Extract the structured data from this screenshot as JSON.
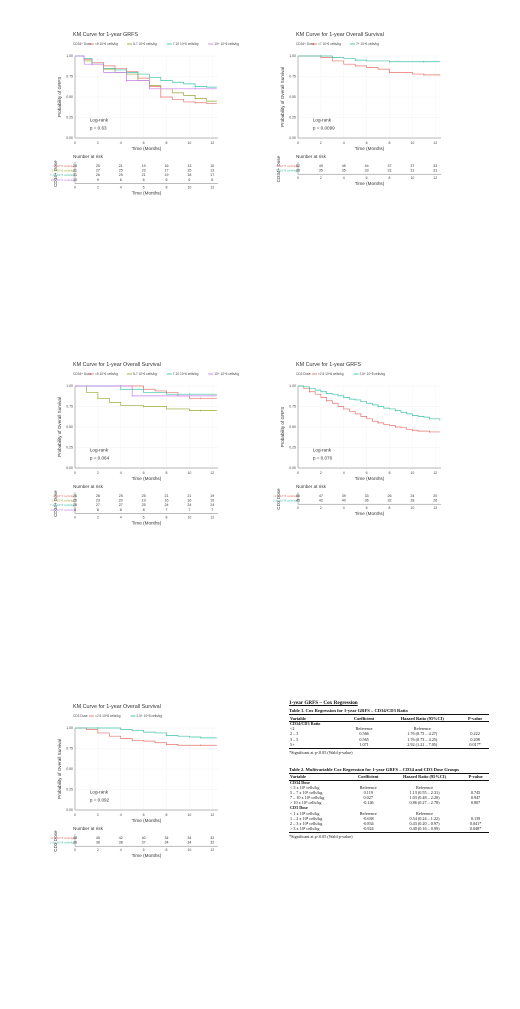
{
  "panels": [
    {
      "id": "p1",
      "title": "KM Curve for 1-year GRFS",
      "legend_title": "CD34+ Dose",
      "legend": [
        "<5 10^6 cells/kg",
        "5-7 10^6 cells/kg",
        "7-10 10^6 cells/kg",
        "10+ 10^6 cells/kg"
      ],
      "ylabel": "Probability of GRFS",
      "xlabel": "Time (Months)",
      "yticks": [
        "0.00",
        "0.25",
        "0.50",
        "0.75",
        "1.00"
      ],
      "xticks": [
        "0",
        "2",
        "4",
        "6",
        "8",
        "10",
        "12"
      ],
      "logrank_label": "Log-rank",
      "pvalue": "p = 0.63",
      "risk_title": "Number at risk",
      "risk_axis_label": "CD34+ Dose",
      "risk_rows": [
        {
          "label": "<5 10^6 cells/kg",
          "values": [
            "26",
            "25",
            "21",
            "19",
            "16",
            "13",
            "10"
          ]
        },
        {
          "label": "5-7 10^6 cells/kg",
          "values": [
            "31",
            "27",
            "25",
            "23",
            "17",
            "15",
            "13"
          ]
        },
        {
          "label": "7-10 10^6 cells/kg",
          "values": [
            "31",
            "26",
            "25",
            "21",
            "19",
            "18",
            "17"
          ]
        },
        {
          "label": "10+ 10^6 cells/kg",
          "values": [
            "10",
            "9",
            "6",
            "6",
            "6",
            "6",
            "6"
          ]
        }
      ]
    },
    {
      "id": "p2",
      "title": "KM Curve for 1-year Overall Survival",
      "legend_title": "CD34+ Dose",
      "legend": [
        "<7 10^6 cells/kg",
        "7+ 10^6 cells/kg"
      ],
      "ylabel": "Probability of Overall Survival",
      "xlabel": "Time (Months)",
      "yticks": [
        "0.00",
        "0.25",
        "0.50",
        "0.75",
        "1.00"
      ],
      "xticks": [
        "0",
        "2",
        "4",
        "6",
        "8",
        "10",
        "12"
      ],
      "logrank_label": "Log-rank",
      "pvalue": "p = 0.0099",
      "risk_title": "Number at risk",
      "risk_axis_label": "CD34+ Dose",
      "risk_rows": [
        {
          "label": "<7 10^6 cells/kg",
          "values": [
            "52",
            "49",
            "45",
            "44",
            "37",
            "37",
            "33"
          ]
        },
        {
          "label": "7+ 10^6 cells/kg",
          "values": [
            "36",
            "35",
            "35",
            "33",
            "31",
            "31",
            "31"
          ]
        }
      ]
    },
    {
      "id": "p3",
      "title": "KM Curve for 1-year Overall Survival",
      "legend_title": "CD34+ Dose",
      "legend": [
        "<5 10^6 cells/kg",
        "5-7 10^6 cells/kg",
        "7-10 10^6 cells/kg",
        "10+ 10^6 cells/kg"
      ],
      "ylabel": "Probability of Overall Survival",
      "xlabel": "Time (Months)",
      "yticks": [
        "0.00",
        "0.25",
        "0.50",
        "0.75",
        "1.00"
      ],
      "xticks": [
        "0",
        "2",
        "4",
        "6",
        "8",
        "10",
        "12"
      ],
      "logrank_label": "Log-rank",
      "pvalue": "p = 0.064",
      "risk_title": "Number at risk",
      "risk_axis_label": "CD34+ Dose",
      "risk_rows": [
        {
          "label": "<5 10^6 cells/kg",
          "values": [
            "26",
            "26",
            "25",
            "25",
            "21",
            "21",
            "19"
          ]
        },
        {
          "label": "5-7 10^6 cells/kg",
          "values": [
            "26",
            "23",
            "20",
            "19",
            "16",
            "16",
            "15"
          ]
        },
        {
          "label": "7-10 10^6 cells/kg",
          "values": [
            "28",
            "27",
            "27",
            "25",
            "24",
            "24",
            "24"
          ]
        },
        {
          "label": "10+ 10^6 cells/kg",
          "values": [
            "8",
            "8",
            "8",
            "8",
            "7",
            "7",
            "7"
          ]
        }
      ]
    },
    {
      "id": "p4",
      "title": "KM Curve for 1-year GRFS",
      "legend_title": "CD3 Dose",
      "legend": [
        "<2.5 10^8 cells/kg",
        "2.5+ 10^8 cells/kg"
      ],
      "ylabel": "Probability of GRFS",
      "xlabel": "Time (Months)",
      "yticks": [
        "0.00",
        "0.25",
        "0.50",
        "0.75",
        "1.00"
      ],
      "xticks": [
        "0",
        "2",
        "4",
        "6",
        "8",
        "10",
        "12"
      ],
      "logrank_label": "Log-rank",
      "pvalue": "p = 0.076",
      "risk_title": "Number at risk",
      "risk_axis_label": "CD3 Dose",
      "risk_rows": [
        {
          "label": "<2.5 10^8 cells/kg",
          "values": [
            "56",
            "47",
            "39",
            "33",
            "26",
            "24",
            "20"
          ]
        },
        {
          "label": "2.5+ 10^8 cells/kg",
          "values": [
            "45",
            "42",
            "40",
            "36",
            "32",
            "28",
            "26"
          ]
        }
      ]
    },
    {
      "id": "p5",
      "title": "KM Curve for 1-year Overall Survival",
      "legend_title": "CD3 Dose",
      "legend": [
        "<2.5 10^8 cells/kg",
        "2.5+ 10^8 cells/kg"
      ],
      "ylabel": "Probability of Overall Survival",
      "xlabel": "Time (Months)",
      "yticks": [
        "0.00",
        "0.25",
        "0.50",
        "0.75",
        "1.00"
      ],
      "xticks": [
        "0",
        "2",
        "4",
        "6",
        "8",
        "10",
        "12"
      ],
      "logrank_label": "Log-rank",
      "pvalue": "p = 0.092",
      "risk_title": "Number at risk",
      "risk_axis_label": "CD3 Dose",
      "risk_rows": [
        {
          "label": "<2.5 10^8 cells/kg",
          "values": [
            "48",
            "45",
            "42",
            "40",
            "34",
            "34",
            "32"
          ]
        },
        {
          "label": "2.5+ 10^8 cells/kg",
          "values": [
            "38",
            "38",
            "38",
            "37",
            "34",
            "34",
            "32"
          ]
        }
      ]
    }
  ],
  "chart_data": [
    {
      "type": "line",
      "title": "KM Curve for 1-year GRFS",
      "xlabel": "Time (Months)",
      "ylabel": "Probability of GRFS",
      "xlim": [
        0,
        12.5
      ],
      "ylim": [
        0,
        1
      ],
      "series": [
        {
          "name": "<5 10^6 cells/kg",
          "color": "#e8746c",
          "x": [
            0,
            0.8,
            1.5,
            2.5,
            3.5,
            4.5,
            5.5,
            6.5,
            7.5,
            8.5,
            9.5,
            10.5,
            11.5,
            12.4
          ],
          "y": [
            1,
            0.96,
            0.92,
            0.88,
            0.85,
            0.81,
            0.73,
            0.63,
            0.5,
            0.47,
            0.44,
            0.43,
            0.42,
            0.42
          ]
        },
        {
          "name": "5-7 10^6 cells/kg",
          "color": "#9aa832",
          "x": [
            0,
            0.8,
            1.5,
            2.5,
            3.5,
            4.5,
            5.5,
            6.5,
            7.5,
            8.5,
            9.5,
            10.5,
            11.5,
            12.4
          ],
          "y": [
            1,
            0.94,
            0.9,
            0.84,
            0.8,
            0.78,
            0.7,
            0.64,
            0.6,
            0.55,
            0.52,
            0.48,
            0.45,
            0.45
          ]
        },
        {
          "name": "7-10 10^6 cells/kg",
          "color": "#3fc1a8",
          "x": [
            0,
            0.8,
            1.5,
            2.5,
            3.5,
            4.5,
            5.5,
            6.5,
            7.5,
            8.5,
            9.5,
            10.5,
            11.5,
            12.4
          ],
          "y": [
            1,
            0.97,
            0.9,
            0.85,
            0.83,
            0.8,
            0.78,
            0.74,
            0.7,
            0.68,
            0.66,
            0.63,
            0.62,
            0.62
          ]
        },
        {
          "name": "10+ 10^6 cells/kg",
          "color": "#c77cf0",
          "x": [
            0,
            0.8,
            1.5,
            2.5,
            3.5,
            4.5,
            5.5,
            6.5,
            7.5,
            8.5,
            9.5,
            10.5,
            11.5,
            12.4
          ],
          "y": [
            1,
            0.9,
            0.9,
            0.8,
            0.8,
            0.7,
            0.7,
            0.6,
            0.6,
            0.6,
            0.6,
            0.6,
            0.6,
            0.6
          ]
        }
      ]
    },
    {
      "type": "line",
      "title": "KM Curve for 1-year Overall Survival",
      "xlabel": "Time (Months)",
      "ylabel": "Probability of Overall Survival",
      "xlim": [
        0,
        12.5
      ],
      "ylim": [
        0,
        1
      ],
      "series": [
        {
          "name": "<7 10^6 cells/kg",
          "color": "#e8746c",
          "x": [
            0,
            1,
            2,
            3,
            4,
            5,
            6,
            7,
            8,
            9,
            10,
            11,
            12.4
          ],
          "y": [
            1,
            1,
            0.98,
            0.94,
            0.9,
            0.88,
            0.86,
            0.84,
            0.8,
            0.8,
            0.78,
            0.77,
            0.76
          ]
        },
        {
          "name": "7+ 10^6 cells/kg",
          "color": "#3fc1a8",
          "x": [
            0,
            1,
            2,
            3,
            4,
            5,
            6,
            7,
            8,
            9,
            10,
            11,
            12.4
          ],
          "y": [
            1,
            1,
            1,
            0.98,
            0.97,
            0.95,
            0.94,
            0.94,
            0.93,
            0.93,
            0.93,
            0.93,
            0.93
          ]
        }
      ]
    },
    {
      "type": "line",
      "title": "KM Curve for 1-year Overall Survival",
      "xlabel": "Time (Months)",
      "ylabel": "Probability of Overall Survival",
      "xlim": [
        0,
        12.5
      ],
      "ylim": [
        0,
        1
      ],
      "series": [
        {
          "name": "<5 10^6 cells/kg",
          "color": "#e8746c",
          "x": [
            0,
            2,
            4,
            6,
            7,
            8,
            9,
            10,
            11,
            12.4
          ],
          "y": [
            1,
            1,
            1,
            0.96,
            0.94,
            0.92,
            0.88,
            0.85,
            0.85,
            0.85
          ]
        },
        {
          "name": "5-7 10^6 cells/kg",
          "color": "#9aa832",
          "x": [
            0,
            1,
            2,
            3,
            4,
            6,
            8,
            10,
            11,
            12.4
          ],
          "y": [
            1,
            0.92,
            0.85,
            0.8,
            0.76,
            0.75,
            0.72,
            0.7,
            0.7,
            0.7
          ]
        },
        {
          "name": "7-10 10^6 cells/kg",
          "color": "#3fc1a8",
          "x": [
            0,
            2,
            4,
            6,
            8,
            10,
            12.4
          ],
          "y": [
            1,
            1,
            0.96,
            0.92,
            0.9,
            0.9,
            0.9
          ]
        },
        {
          "name": "10+ 10^6 cells/kg",
          "color": "#c77cf0",
          "x": [
            0,
            4,
            5,
            8,
            12.4
          ],
          "y": [
            1,
            1,
            0.88,
            0.88,
            0.88
          ]
        }
      ]
    },
    {
      "type": "line",
      "title": "KM Curve for 1-year GRFS",
      "xlabel": "Time (Months)",
      "ylabel": "Probability of GRFS",
      "xlim": [
        0,
        12.5
      ],
      "ylim": [
        0,
        1
      ],
      "series": [
        {
          "name": "<2.5 10^8 cells/kg",
          "color": "#e8746c",
          "x": [
            0,
            0.5,
            1,
            1.5,
            2,
            2.5,
            3,
            3.5,
            4,
            4.5,
            5,
            5.5,
            6,
            6.5,
            7,
            7.5,
            8,
            8.5,
            9,
            9.5,
            10,
            10.5,
            11,
            11.5,
            12.4
          ],
          "y": [
            1,
            0.97,
            0.93,
            0.9,
            0.86,
            0.82,
            0.79,
            0.75,
            0.72,
            0.69,
            0.66,
            0.63,
            0.6,
            0.57,
            0.55,
            0.53,
            0.52,
            0.5,
            0.49,
            0.47,
            0.46,
            0.45,
            0.45,
            0.44,
            0.44
          ]
        },
        {
          "name": "2.5+ 10^8 cells/kg",
          "color": "#3fc1a8",
          "x": [
            0,
            0.5,
            1,
            1.5,
            2,
            2.5,
            3,
            3.5,
            4,
            4.5,
            5,
            5.5,
            6,
            6.5,
            7,
            7.5,
            8,
            8.5,
            9,
            9.5,
            10,
            10.5,
            11,
            11.5,
            12.4
          ],
          "y": [
            1,
            0.99,
            0.97,
            0.95,
            0.93,
            0.91,
            0.9,
            0.88,
            0.86,
            0.84,
            0.83,
            0.81,
            0.79,
            0.77,
            0.75,
            0.73,
            0.72,
            0.7,
            0.68,
            0.66,
            0.64,
            0.63,
            0.62,
            0.6,
            0.58
          ]
        }
      ]
    },
    {
      "type": "line",
      "title": "KM Curve for 1-year Overall Survival",
      "xlabel": "Time (Months)",
      "ylabel": "Probability of Overall Survival",
      "xlim": [
        0,
        12.5
      ],
      "ylim": [
        0,
        1
      ],
      "series": [
        {
          "name": "<2.5 10^8 cells/kg",
          "color": "#e8746c",
          "x": [
            0,
            1,
            2,
            3,
            4,
            5,
            6,
            7,
            8,
            9,
            10,
            11,
            12.4
          ],
          "y": [
            1,
            0.98,
            0.94,
            0.9,
            0.87,
            0.85,
            0.84,
            0.82,
            0.8,
            0.79,
            0.79,
            0.79,
            0.79
          ]
        },
        {
          "name": "2.5+ 10^8 cells/kg",
          "color": "#3fc1a8",
          "x": [
            0,
            1,
            2,
            3,
            4,
            5,
            6,
            7,
            8,
            9,
            10,
            11,
            12.4
          ],
          "y": [
            1,
            1,
            1,
            1,
            0.98,
            0.97,
            0.95,
            0.94,
            0.91,
            0.9,
            0.89,
            0.88,
            0.88
          ]
        }
      ]
    }
  ],
  "cox": {
    "heading": "1-year GRFS – Cox Regression",
    "table1_caption": "Table 1. Cox Regression for 1-year GRFS – CD34/CD3 Ratio",
    "table2_caption": "Table 2. Multivariable Cox Regression for 1-year GRFS – CD34 and CD3 Dose Groups",
    "headers": [
      "Variable",
      "Coefficient",
      "Hazard Ratio (95%CI)",
      "P-value"
    ],
    "table1_rows": [
      {
        "var": "CD34/CD3 Ratio",
        "bold": true,
        "coef": "",
        "hr": "",
        "p": ""
      },
      {
        "var": "<2",
        "bold": false,
        "coef": "Reference",
        "hr": "Reference",
        "p": ""
      },
      {
        "var": "2 – 3",
        "bold": false,
        "coef": "0.566",
        "hr": "1.76 (0.73 – 4.27)",
        "p": "0.222"
      },
      {
        "var": "3 – 5",
        "bold": false,
        "coef": "0.565",
        "hr": "1.76 (0.73 – 4.25)",
        "p": "0.208"
      },
      {
        "var": "5+",
        "bold": false,
        "coef": "1.071",
        "hr": "2.92 (1.21 – 7.05)",
        "p": "0.017*"
      }
    ],
    "table2_rows": [
      {
        "var": "CD34 Dose",
        "bold": true,
        "coef": "",
        "hr": "",
        "p": ""
      },
      {
        "var": "< 5 x 10⁶ cells/kg",
        "bold": false,
        "coef": "Reference",
        "hr": "Reference",
        "p": ""
      },
      {
        "var": "5 – 7 x 10⁶ cells/kg",
        "bold": false,
        "coef": "0.119",
        "hr": "1.13 (0.55 – 2.31)",
        "p": "0.745"
      },
      {
        "var": "7 – 10 x 10⁶ cells/kg",
        "bold": false,
        "coef": "0.027",
        "hr": "1.03 (0.48 – 2.20)",
        "p": "0.947"
      },
      {
        "var": "> 10 x 10⁶ cells/kg",
        "bold": false,
        "coef": "-0.146",
        "hr": "0.86 (0.27 – 2.78)",
        "p": "0.807"
      },
      {
        "var": "CD3 Dose",
        "bold": true,
        "coef": "",
        "hr": "",
        "p": ""
      },
      {
        "var": "< 1 x 10⁸ cells/kg",
        "bold": false,
        "coef": "Reference",
        "hr": "Reference",
        "p": ""
      },
      {
        "var": "1 – 2 x 10⁸ cells/kg",
        "bold": false,
        "coef": "-0.638",
        "hr": "0.54 (0.24 – 1.22)",
        "p": "0.139"
      },
      {
        "var": "2 – 3 x 10⁸ cells/kg",
        "bold": false,
        "coef": "-0.834",
        "hr": "0.43 (0.20 – 0.97)",
        "p": "0.041*"
      },
      {
        "var": "> 3 x 10⁸ cells/kg",
        "bold": false,
        "coef": "-0.924",
        "hr": "0.40 (0.16 – 0.99)",
        "p": "0.048*"
      }
    ],
    "footnote": "*Significant at p<0.05 (Wald p-value)"
  }
}
